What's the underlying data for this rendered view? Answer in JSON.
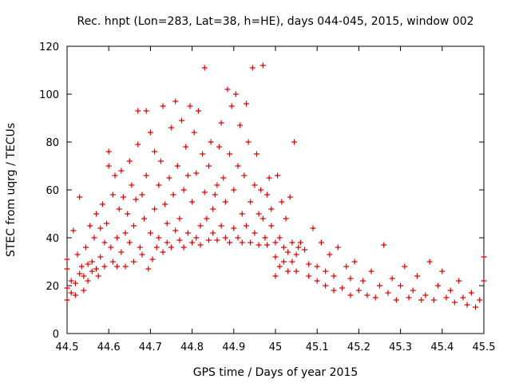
{
  "chart_data": {
    "type": "scatter",
    "title": "Rec. hnpt (Lon=283, Lat=38, h=HE), days 044-045, 2015, window 002",
    "xlabel": "GPS time / Days of year 2015",
    "ylabel": "STEC from uqrg / TECUs",
    "xlim": [
      44.5,
      45.5
    ],
    "ylim": [
      0,
      120
    ],
    "xticks": [
      "44.5",
      "44.6",
      "44.7",
      "44.8",
      "44.9",
      "45",
      "45.1",
      "45.2",
      "45.3",
      "45.4",
      "45.5"
    ],
    "yticks": [
      "0",
      "20",
      "40",
      "60",
      "80",
      "100",
      "120"
    ],
    "grid": false,
    "marker": "+",
    "marker_color": "#dd0000",
    "series": [
      {
        "name": "STEC",
        "points": [
          [
            44.5,
            14
          ],
          [
            44.5,
            19
          ],
          [
            44.5,
            27
          ],
          [
            44.5,
            31
          ],
          [
            44.51,
            17
          ],
          [
            44.51,
            22
          ],
          [
            44.515,
            43
          ],
          [
            44.52,
            21
          ],
          [
            44.52,
            16
          ],
          [
            44.525,
            33
          ],
          [
            44.53,
            25
          ],
          [
            44.53,
            57
          ],
          [
            44.535,
            28
          ],
          [
            44.54,
            24
          ],
          [
            44.54,
            18
          ],
          [
            44.545,
            36
          ],
          [
            44.55,
            22
          ],
          [
            44.55,
            29
          ],
          [
            44.555,
            45
          ],
          [
            44.56,
            26
          ],
          [
            44.56,
            30
          ],
          [
            44.565,
            40
          ],
          [
            44.57,
            50
          ],
          [
            44.57,
            27
          ],
          [
            44.575,
            24
          ],
          [
            44.58,
            32
          ],
          [
            44.58,
            44
          ],
          [
            44.585,
            54
          ],
          [
            44.59,
            28
          ],
          [
            44.59,
            38
          ],
          [
            44.595,
            46
          ],
          [
            44.6,
            76
          ],
          [
            44.6,
            70
          ],
          [
            44.605,
            36
          ],
          [
            44.61,
            30
          ],
          [
            44.61,
            58
          ],
          [
            44.615,
            66
          ],
          [
            44.62,
            28
          ],
          [
            44.62,
            40
          ],
          [
            44.625,
            52
          ],
          [
            44.63,
            68
          ],
          [
            44.63,
            34
          ],
          [
            44.635,
            57
          ],
          [
            44.64,
            42
          ],
          [
            44.64,
            28
          ],
          [
            44.645,
            50
          ],
          [
            44.65,
            72
          ],
          [
            44.65,
            38
          ],
          [
            44.655,
            62
          ],
          [
            44.66,
            45
          ],
          [
            44.66,
            30
          ],
          [
            44.665,
            56
          ],
          [
            44.67,
            79
          ],
          [
            44.67,
            93
          ],
          [
            44.675,
            36
          ],
          [
            44.68,
            58
          ],
          [
            44.68,
            33
          ],
          [
            44.685,
            48
          ],
          [
            44.69,
            66
          ],
          [
            44.69,
            93
          ],
          [
            44.695,
            27
          ],
          [
            44.7,
            84
          ],
          [
            44.7,
            42
          ],
          [
            44.705,
            31
          ],
          [
            44.71,
            52
          ],
          [
            44.71,
            76
          ],
          [
            44.715,
            36
          ],
          [
            44.72,
            62
          ],
          [
            44.72,
            40
          ],
          [
            44.725,
            72
          ],
          [
            44.73,
            95
          ],
          [
            44.73,
            34
          ],
          [
            44.735,
            54
          ],
          [
            44.74,
            46
          ],
          [
            44.74,
            38
          ],
          [
            44.745,
            65
          ],
          [
            44.75,
            86
          ],
          [
            44.75,
            36
          ],
          [
            44.755,
            58
          ],
          [
            44.76,
            97
          ],
          [
            44.76,
            43
          ],
          [
            44.765,
            70
          ],
          [
            44.77,
            39
          ],
          [
            44.77,
            48
          ],
          [
            44.775,
            89
          ],
          [
            44.78,
            60
          ],
          [
            44.78,
            36
          ],
          [
            44.785,
            78
          ],
          [
            44.79,
            66
          ],
          [
            44.79,
            42
          ],
          [
            44.795,
            95
          ],
          [
            44.8,
            38
          ],
          [
            44.8,
            55
          ],
          [
            44.805,
            84
          ],
          [
            44.81,
            40
          ],
          [
            44.81,
            67
          ],
          [
            44.815,
            93
          ],
          [
            44.82,
            45
          ],
          [
            44.82,
            37
          ],
          [
            44.825,
            75
          ],
          [
            44.83,
            111
          ],
          [
            44.83,
            59
          ],
          [
            44.835,
            48
          ],
          [
            44.84,
            70
          ],
          [
            44.84,
            39
          ],
          [
            44.845,
            80
          ],
          [
            44.85,
            52
          ],
          [
            44.85,
            42
          ],
          [
            44.855,
            58
          ],
          [
            44.86,
            62
          ],
          [
            44.86,
            39
          ],
          [
            44.865,
            78
          ],
          [
            44.87,
            88
          ],
          [
            44.87,
            45
          ],
          [
            44.875,
            65
          ],
          [
            44.88,
            40
          ],
          [
            44.88,
            55
          ],
          [
            44.885,
            102
          ],
          [
            44.89,
            75
          ],
          [
            44.89,
            38
          ],
          [
            44.895,
            95
          ],
          [
            44.9,
            60
          ],
          [
            44.9,
            44
          ],
          [
            44.905,
            100
          ],
          [
            44.91,
            70
          ],
          [
            44.91,
            40
          ],
          [
            44.915,
            87
          ],
          [
            44.92,
            50
          ],
          [
            44.92,
            38
          ],
          [
            44.925,
            66
          ],
          [
            44.93,
            96
          ],
          [
            44.93,
            45
          ],
          [
            44.935,
            80
          ],
          [
            44.94,
            55
          ],
          [
            44.94,
            38
          ],
          [
            44.945,
            111
          ],
          [
            44.95,
            62
          ],
          [
            44.95,
            42
          ],
          [
            44.955,
            75
          ],
          [
            44.96,
            50
          ],
          [
            44.96,
            37
          ],
          [
            44.965,
            60
          ],
          [
            44.97,
            48
          ],
          [
            44.97,
            112
          ],
          [
            44.975,
            40
          ],
          [
            44.98,
            58
          ],
          [
            44.98,
            37
          ],
          [
            44.985,
            65
          ],
          [
            44.99,
            45
          ],
          [
            44.99,
            52
          ],
          [
            45.0,
            38
          ],
          [
            45.0,
            24
          ],
          [
            45.0,
            32
          ],
          [
            45.005,
            66
          ],
          [
            45.01,
            28
          ],
          [
            45.01,
            40
          ],
          [
            45.015,
            55
          ],
          [
            45.02,
            30
          ],
          [
            45.02,
            36
          ],
          [
            45.025,
            48
          ],
          [
            45.03,
            26
          ],
          [
            45.03,
            34
          ],
          [
            45.035,
            57
          ],
          [
            45.04,
            38
          ],
          [
            45.04,
            30
          ],
          [
            45.045,
            80
          ],
          [
            45.05,
            26
          ],
          [
            45.05,
            33
          ],
          [
            45.055,
            36
          ],
          [
            45.06,
            38
          ],
          [
            45.07,
            35
          ],
          [
            45.08,
            29
          ],
          [
            45.08,
            24
          ],
          [
            45.09,
            44
          ],
          [
            45.1,
            22
          ],
          [
            45.1,
            28
          ],
          [
            45.11,
            38
          ],
          [
            45.12,
            20
          ],
          [
            45.12,
            26
          ],
          [
            45.13,
            33
          ],
          [
            45.14,
            18
          ],
          [
            45.14,
            24
          ],
          [
            45.15,
            36
          ],
          [
            45.16,
            19
          ],
          [
            45.17,
            28
          ],
          [
            45.18,
            23
          ],
          [
            45.18,
            16
          ],
          [
            45.19,
            30
          ],
          [
            45.2,
            18
          ],
          [
            45.21,
            22
          ],
          [
            45.22,
            16
          ],
          [
            45.23,
            26
          ],
          [
            45.24,
            15
          ],
          [
            45.25,
            20
          ],
          [
            45.26,
            37
          ],
          [
            45.27,
            17
          ],
          [
            45.28,
            23
          ],
          [
            45.29,
            14
          ],
          [
            45.3,
            20
          ],
          [
            45.31,
            28
          ],
          [
            45.32,
            15
          ],
          [
            45.33,
            18
          ],
          [
            45.34,
            24
          ],
          [
            45.35,
            14
          ],
          [
            45.36,
            16
          ],
          [
            45.37,
            30
          ],
          [
            45.38,
            14
          ],
          [
            45.39,
            20
          ],
          [
            45.4,
            26
          ],
          [
            45.41,
            15
          ],
          [
            45.42,
            18
          ],
          [
            45.43,
            13
          ],
          [
            45.44,
            22
          ],
          [
            45.45,
            15
          ],
          [
            45.46,
            12
          ],
          [
            45.47,
            17
          ],
          [
            45.48,
            11
          ],
          [
            45.49,
            14
          ],
          [
            45.5,
            32
          ],
          [
            45.5,
            22
          ]
        ]
      }
    ]
  }
}
